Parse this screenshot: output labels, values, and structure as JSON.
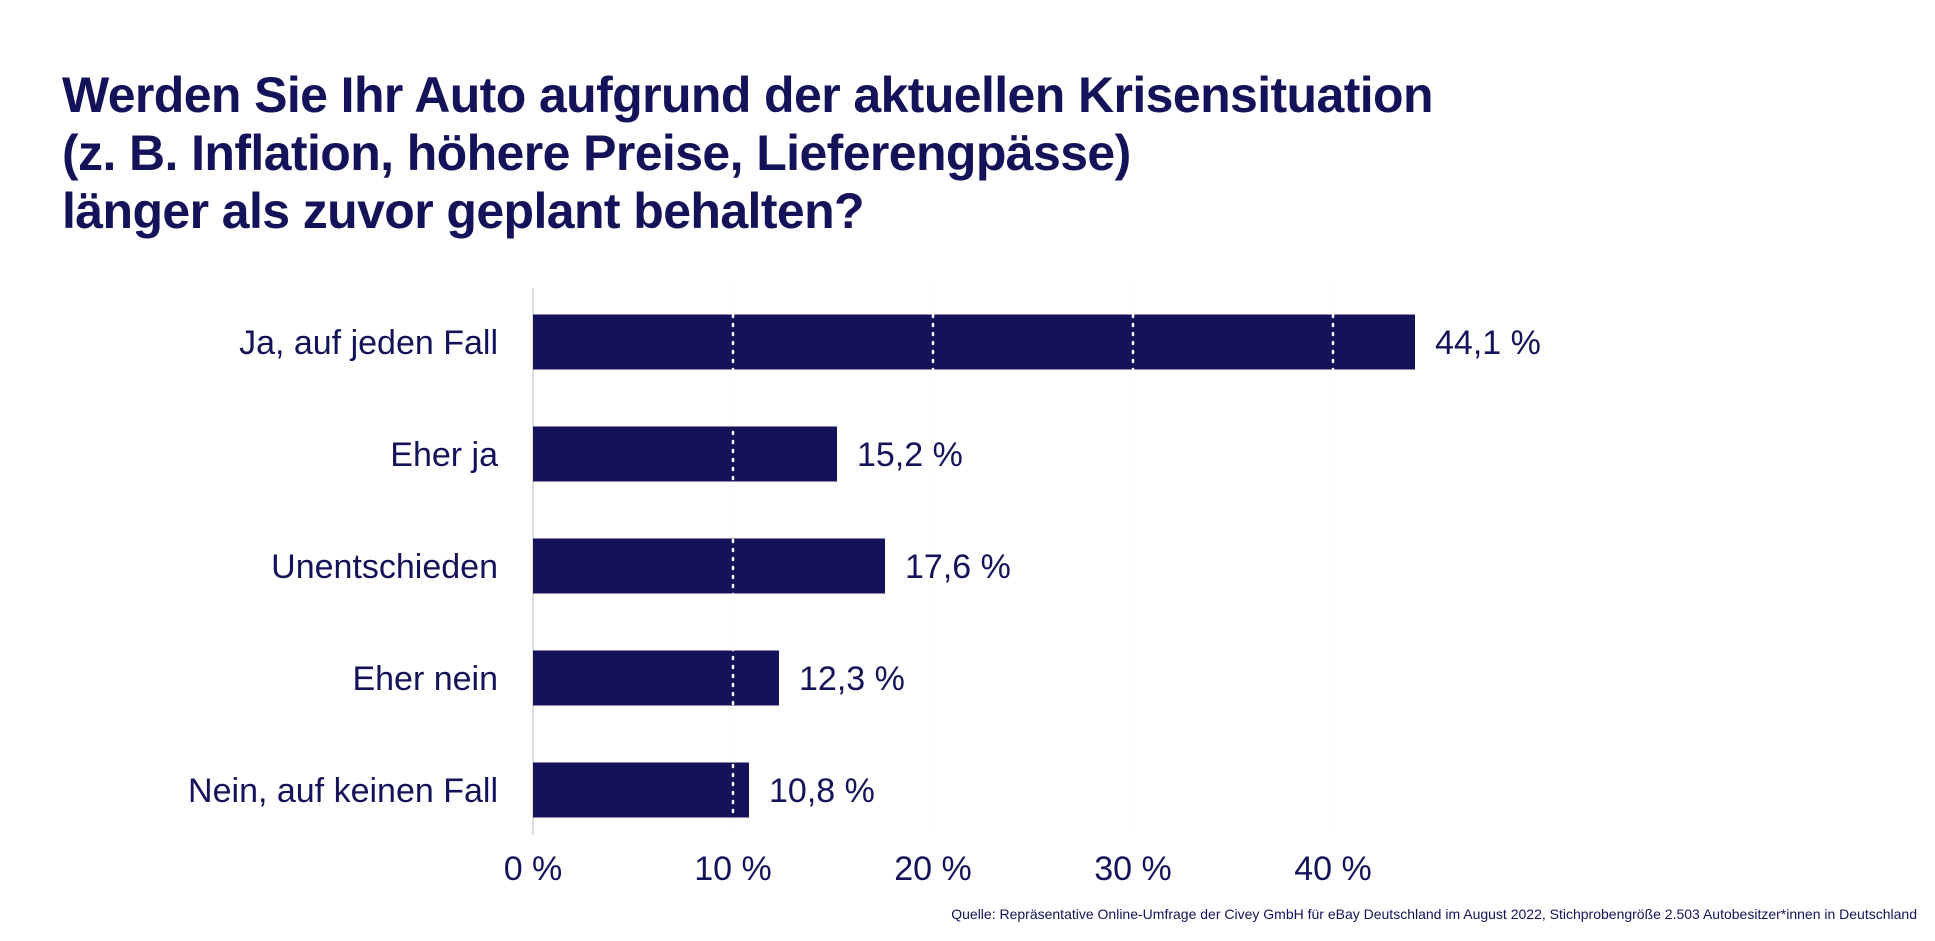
{
  "title_lines": [
    "Werden Sie Ihr Auto aufgrund der aktuellen Krisensituation",
    "(z. B. Inflation, höhere Preise, Lieferengpässe)",
    "länger als zuvor geplant behalten?"
  ],
  "source": "Quelle: Repräsentative Online-Umfrage der Civey GmbH für eBay Deutschland im August 2022, Stichprobengröße 2.503 Autobesitzer*innen in Deutschland",
  "colors": {
    "bar": "#14135a",
    "text": "#14135a",
    "grid": "#d9d9de",
    "axis": "#dcdce2"
  },
  "chart_data": {
    "type": "bar",
    "orientation": "horizontal",
    "categories": [
      "Ja, auf jeden Fall",
      "Eher ja",
      "Unentschieden",
      "Eher nein",
      "Nein, auf keinen Fall"
    ],
    "values": [
      44.1,
      15.2,
      17.6,
      12.3,
      10.8
    ],
    "value_labels": [
      "44,1 %",
      "15,2 %",
      "17,6 %",
      "12,3 %",
      "10,8 %"
    ],
    "xticks": [
      0,
      10,
      20,
      30,
      40
    ],
    "xtick_labels": [
      "0 %",
      "10 %",
      "20 %",
      "30 %",
      "40 %"
    ],
    "xlim": [
      0,
      44.1
    ],
    "grid": "vertical-dotted"
  }
}
